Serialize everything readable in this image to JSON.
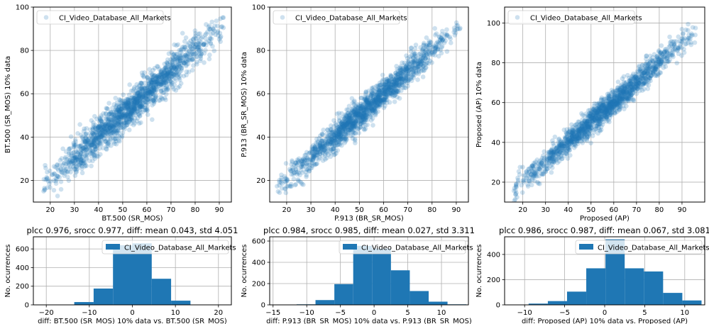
{
  "chart_data": [
    {
      "type": "scatter",
      "xlabel": "BT.500 (SR_MOS)",
      "ylabel": "BT.500 (SR_MOS) 10% data",
      "xlim": [
        13,
        95
      ],
      "ylim": [
        10,
        100
      ],
      "xticks": [
        20,
        30,
        40,
        50,
        60,
        70,
        80,
        90
      ],
      "yticks": [
        20,
        40,
        60,
        80,
        100
      ],
      "grid": true,
      "legend_position": "upper-left",
      "series": [
        {
          "name": "CI_Video_Database_All_Markets",
          "color": "#1f77b4",
          "n_points": 1600,
          "slope": 1.0,
          "intercept": 0.0,
          "noise_sd": 4.05,
          "x_range": [
            16,
            92
          ]
        }
      ]
    },
    {
      "type": "scatter",
      "xlabel": "P.913 (BR_SR_MOS)",
      "ylabel": "P.913 (BR_SR_MOS) 10% data",
      "xlim": [
        13,
        95
      ],
      "ylim": [
        10,
        100
      ],
      "xticks": [
        20,
        30,
        40,
        50,
        60,
        70,
        80,
        90
      ],
      "yticks": [
        20,
        40,
        60,
        80,
        100
      ],
      "grid": true,
      "legend_position": "upper-left",
      "series": [
        {
          "name": "CI_Video_Database_All_Markets",
          "color": "#1f77b4",
          "n_points": 1600,
          "slope": 1.0,
          "intercept": 0.0,
          "noise_sd": 3.3,
          "x_range": [
            16,
            92
          ]
        }
      ]
    },
    {
      "type": "scatter",
      "xlabel": "Proposed (AP)",
      "ylabel": "Proposed (AP) 10% data",
      "xlim": [
        12,
        100
      ],
      "ylim": [
        10,
        108
      ],
      "xticks": [
        20,
        30,
        40,
        50,
        60,
        70,
        80,
        90
      ],
      "yticks": [
        20,
        40,
        60,
        80,
        100
      ],
      "grid": true,
      "legend_position": "upper-left",
      "series": [
        {
          "name": "CI_Video_Database_All_Markets",
          "color": "#1f77b4",
          "n_points": 1600,
          "slope": 1.0,
          "intercept": 0.0,
          "noise_sd": 3.1,
          "x_range": [
            16,
            96
          ]
        }
      ]
    },
    {
      "type": "bar",
      "title": "plcc 0.976, srocc 0.977, diff: mean 0.043, std 4.051",
      "xlabel": "diff: BT.500 (SR_MOS) 10% data vs. BT.500 (SR_MOS)",
      "ylabel": "No. ocurrences",
      "xlim": [
        -23,
        23
      ],
      "ylim": [
        0,
        730
      ],
      "xticks": [
        -20,
        -10,
        0,
        10,
        20
      ],
      "yticks": [
        0,
        200,
        400,
        600
      ],
      "grid": true,
      "legend_position": "upper-right",
      "series_name": "CI_Video_Database_All_Markets",
      "color": "#1f77b4",
      "bins": [
        {
          "x0": -13.5,
          "x1": -9,
          "count": 30
        },
        {
          "x0": -9,
          "x1": -4.5,
          "count": 175
        },
        {
          "x0": -4.5,
          "x1": 0,
          "count": 640
        },
        {
          "x0": 0,
          "x1": 4.5,
          "count": 660
        },
        {
          "x0": 4.5,
          "x1": 9,
          "count": 280
        },
        {
          "x0": 9,
          "x1": 13.5,
          "count": 45
        }
      ]
    },
    {
      "type": "bar",
      "title": "plcc 0.984, srocc 0.985, diff: mean 0.027, std 3.311",
      "xlabel": "diff: P.913 (BR_SR_MOS) 10% data vs. P.913 (BR_SR_MOS)",
      "ylabel": "No. ocurrences",
      "xlim": [
        -15.5,
        14
      ],
      "ylim": [
        0,
        640
      ],
      "xticks": [
        -15,
        -10,
        -5,
        0,
        5,
        10
      ],
      "yticks": [
        0,
        200,
        400,
        600
      ],
      "grid": true,
      "legend_position": "upper-right",
      "series_name": "CI_Video_Database_All_Markets",
      "color": "#1f77b4",
      "bins": [
        {
          "x0": -11.5,
          "x1": -8.7,
          "count": 5
        },
        {
          "x0": -8.7,
          "x1": -5.9,
          "count": 45
        },
        {
          "x0": -5.9,
          "x1": -3.1,
          "count": 195
        },
        {
          "x0": -3.1,
          "x1": -0.3,
          "count": 555
        },
        {
          "x0": -0.3,
          "x1": 2.5,
          "count": 530
        },
        {
          "x0": 2.5,
          "x1": 5.3,
          "count": 325
        },
        {
          "x0": 5.3,
          "x1": 8.1,
          "count": 130
        },
        {
          "x0": 8.1,
          "x1": 10.9,
          "count": 30
        },
        {
          "x0": 10.9,
          "x1": 13.7,
          "count": 5
        }
      ]
    },
    {
      "type": "bar",
      "title": "plcc 0.986, srocc 0.987, diff: mean 0.067, std 3.081",
      "xlabel": "diff: Proposed (AP) 10% data vs. Proposed (AP)",
      "ylabel": "No. ocurrences",
      "xlim": [
        -12.5,
        12.5
      ],
      "ylim": [
        0,
        540
      ],
      "xticks": [
        -10,
        -5,
        0,
        5,
        10
      ],
      "yticks": [
        0,
        200,
        400
      ],
      "grid": true,
      "legend_position": "upper-right",
      "series_name": "CI_Video_Database_All_Markets",
      "color": "#1f77b4",
      "bins": [
        {
          "x0": -9.5,
          "x1": -7.1,
          "count": 10
        },
        {
          "x0": -7.1,
          "x1": -4.7,
          "count": 30
        },
        {
          "x0": -4.7,
          "x1": -2.3,
          "count": 105
        },
        {
          "x0": -2.3,
          "x1": 0.1,
          "count": 290
        },
        {
          "x0": 0.1,
          "x1": 2.5,
          "count": 520
        },
        {
          "x0": 2.5,
          "x1": 4.9,
          "count": 290
        },
        {
          "x0": 4.9,
          "x1": 7.3,
          "count": 265
        },
        {
          "x0": 7.3,
          "x1": 9.7,
          "count": 95
        },
        {
          "x0": 9.7,
          "x1": 12.1,
          "count": 35
        }
      ]
    }
  ]
}
